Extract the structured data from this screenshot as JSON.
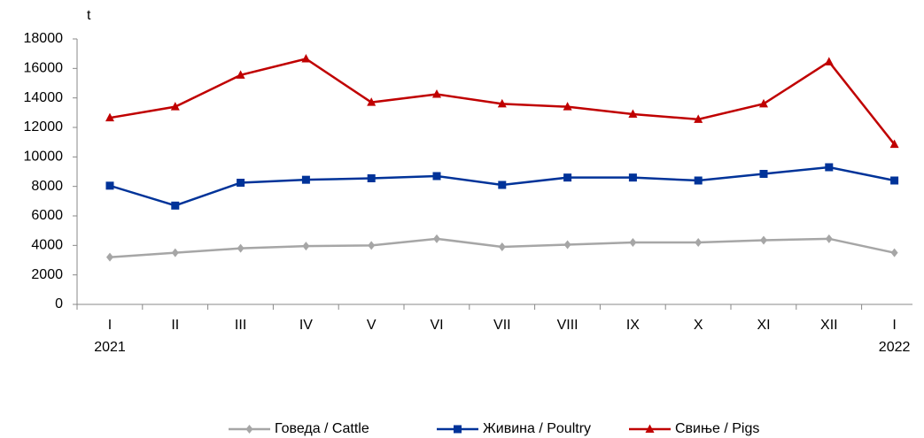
{
  "chart_data": {
    "type": "line",
    "y_unit": "t",
    "categories": [
      "I",
      "II",
      "III",
      "IV",
      "V",
      "VI",
      "VII",
      "VIII",
      "IX",
      "X",
      "XI",
      "XII",
      "I"
    ],
    "years": [
      "2021",
      null,
      null,
      null,
      null,
      null,
      null,
      null,
      null,
      null,
      null,
      null,
      "2022"
    ],
    "series": [
      {
        "name": "Говеда / Cattle",
        "color": "#a6a6a6",
        "marker": "diamond",
        "values": [
          3200,
          3500,
          3800,
          3950,
          4000,
          4450,
          3900,
          4050,
          4200,
          4200,
          4350,
          4450,
          3500
        ]
      },
      {
        "name": "Живина / Poultry",
        "color": "#003399",
        "marker": "square",
        "values": [
          8050,
          6700,
          8250,
          8450,
          8550,
          8700,
          8100,
          8600,
          8600,
          8400,
          8850,
          9300,
          8400
        ]
      },
      {
        "name": "Свиње / Pigs",
        "color": "#c00000",
        "marker": "triangle",
        "values": [
          12650,
          13400,
          15550,
          16650,
          13700,
          14250,
          13600,
          13400,
          12900,
          12550,
          13600,
          16450,
          10850
        ]
      }
    ],
    "ylim": [
      0,
      18000
    ],
    "yticks": [
      0,
      2000,
      4000,
      6000,
      8000,
      10000,
      12000,
      14000,
      16000,
      18000
    ],
    "grid": false,
    "legend": "bottom"
  }
}
